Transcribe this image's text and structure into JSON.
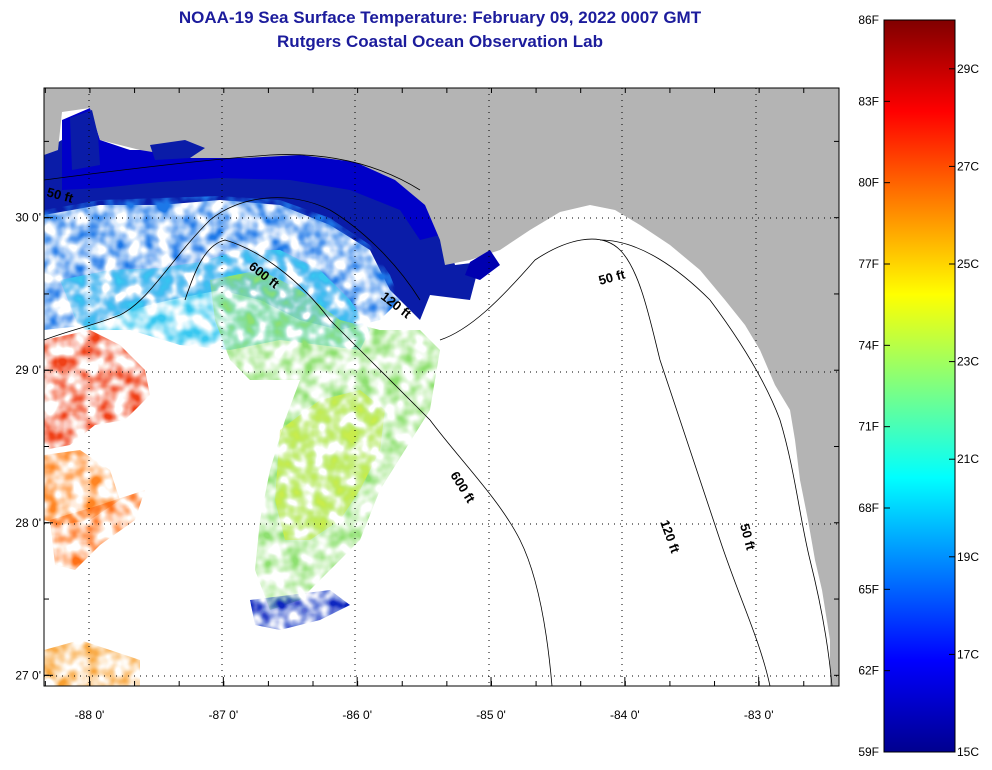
{
  "title": {
    "line1": "NOAA-19 Sea Surface Temperature:  February 09, 2022 0007 GMT",
    "line2": "Rutgers Coastal Ocean Observation Lab"
  },
  "map": {
    "lon_ticks": [
      {
        "value": -88,
        "label": "-88 0'"
      },
      {
        "value": -87,
        "label": "-87 0'"
      },
      {
        "value": -86,
        "label": "-86 0'"
      },
      {
        "value": -85,
        "label": "-85 0'"
      },
      {
        "value": -84,
        "label": "-84 0'"
      },
      {
        "value": -83,
        "label": "-83 0'"
      }
    ],
    "lat_ticks": [
      {
        "value": 30,
        "label": "30 0'"
      },
      {
        "value": 29,
        "label": "29 0'"
      },
      {
        "value": 28,
        "label": "28 0'"
      },
      {
        "value": 27,
        "label": "27 0'"
      }
    ],
    "lon_range": [
      -88.34,
      -82.4
    ],
    "lat_range": [
      26.93,
      30.85
    ],
    "contour_labels": [
      "50 ft",
      "600 ft",
      "120 ft",
      "50 ft",
      "600 ft",
      "120 ft",
      "50 ft"
    ],
    "colors": {
      "land": "#b4b4b4",
      "water_no_data": "#ffffff"
    }
  },
  "colorbar": {
    "fahrenheit_labels": [
      "86F",
      "83F",
      "80F",
      "77F",
      "74F",
      "71F",
      "68F",
      "65F",
      "62F",
      "59F"
    ],
    "celsius_labels": [
      "29C",
      "27C",
      "25C",
      "23C",
      "21C",
      "19C",
      "17C",
      "15C"
    ],
    "range_f": [
      59,
      86
    ],
    "colormap": "jet"
  }
}
